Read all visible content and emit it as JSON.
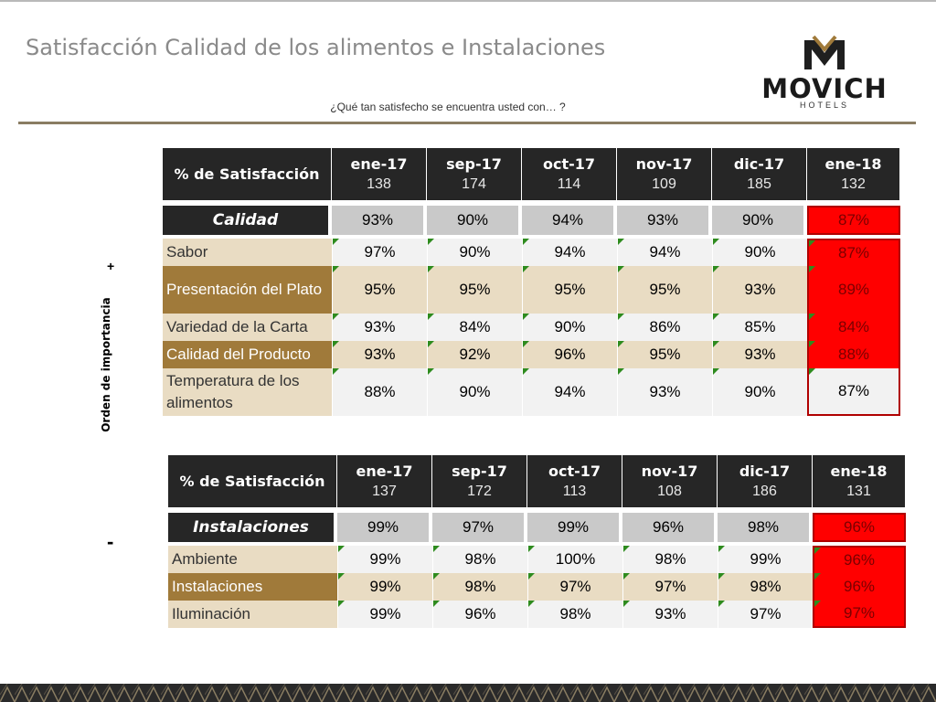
{
  "page": {
    "title": "Satisfacción Calidad de los alimentos e Instalaciones",
    "subtitle": "¿Qué tan satisfecho se encuentra usted con… ?",
    "side_label": "Orden de importancia",
    "plus_sign": "+",
    "minus_sign": "-"
  },
  "logo": {
    "name": "MOVICH",
    "sub": "HOTELS"
  },
  "colors": {
    "header_dark": "#262626",
    "beige": "#e9dcc3",
    "gold": "#a07a3a",
    "alert_red": "#ff0000",
    "flag_green": "#2e8b1e"
  },
  "calidad": {
    "header_label": "% de Satisfacción",
    "periods": [
      {
        "month": "ene-17",
        "n": "138"
      },
      {
        "month": "sep-17",
        "n": "174"
      },
      {
        "month": "oct-17",
        "n": "114"
      },
      {
        "month": "nov-17",
        "n": "109"
      },
      {
        "month": "dic-17",
        "n": "185"
      },
      {
        "month": "ene-18",
        "n": "132"
      }
    ],
    "summary": {
      "label": "Calidad",
      "values": [
        "93%",
        "90%",
        "94%",
        "93%",
        "90%",
        "87%"
      ]
    },
    "rows": [
      {
        "label": "Sabor",
        "values": [
          "97%",
          "90%",
          "94%",
          "94%",
          "90%",
          "87%"
        ]
      },
      {
        "label": "Presentación del Plato",
        "values": [
          "95%",
          "95%",
          "95%",
          "95%",
          "93%",
          "89%"
        ]
      },
      {
        "label": "Variedad de la Carta",
        "values": [
          "93%",
          "84%",
          "90%",
          "86%",
          "85%",
          "84%"
        ]
      },
      {
        "label": "Calidad del Producto",
        "values": [
          "93%",
          "92%",
          "96%",
          "95%",
          "93%",
          "88%"
        ]
      },
      {
        "label": "Temperatura de los alimentos",
        "values": [
          "88%",
          "90%",
          "94%",
          "93%",
          "90%",
          "87%"
        ]
      }
    ]
  },
  "instalaciones": {
    "header_label": "% de Satisfacción",
    "periods": [
      {
        "month": "ene-17",
        "n": "137"
      },
      {
        "month": "sep-17",
        "n": "172"
      },
      {
        "month": "oct-17",
        "n": "113"
      },
      {
        "month": "nov-17",
        "n": "108"
      },
      {
        "month": "dic-17",
        "n": "186"
      },
      {
        "month": "ene-18",
        "n": "131"
      }
    ],
    "summary": {
      "label": "Instalaciones",
      "values": [
        "99%",
        "97%",
        "99%",
        "96%",
        "98%",
        "96%"
      ]
    },
    "rows": [
      {
        "label": "Ambiente",
        "values": [
          "99%",
          "98%",
          "100%",
          "98%",
          "99%",
          "96%"
        ]
      },
      {
        "label": "Instalaciones",
        "values": [
          "99%",
          "98%",
          "97%",
          "97%",
          "98%",
          "96%"
        ]
      },
      {
        "label": "Iluminación",
        "values": [
          "99%",
          "96%",
          "98%",
          "93%",
          "97%",
          "97%"
        ]
      }
    ]
  }
}
